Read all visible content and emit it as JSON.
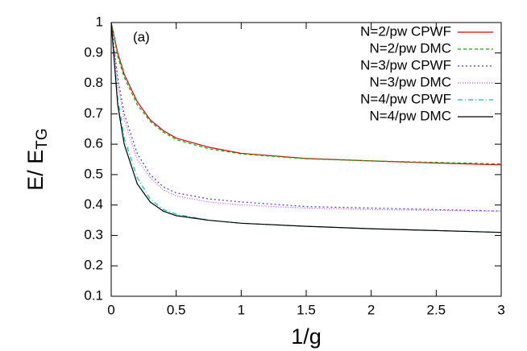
{
  "chart_data": {
    "type": "line",
    "xlabel": "1/g",
    "ylabel": "E/ E",
    "ylabel_sub": "TG",
    "annotation": "(a)",
    "x": [
      0,
      0.05,
      0.1,
      0.2,
      0.3,
      0.4,
      0.5,
      0.75,
      1,
      1.5,
      2,
      2.5,
      3
    ],
    "series": [
      {
        "name": "N=2/pw CPWF",
        "color": "#e00000",
        "dash": "",
        "values": [
          1,
          0.9,
          0.83,
          0.74,
          0.68,
          0.645,
          0.62,
          0.59,
          0.57,
          0.553,
          0.545,
          0.538,
          0.532
        ]
      },
      {
        "name": "N=2/pw DMC",
        "color": "#00b000",
        "dash": "4 3",
        "values": [
          1,
          0.89,
          0.82,
          0.73,
          0.675,
          0.64,
          0.615,
          0.585,
          0.568,
          0.552,
          0.545,
          0.54,
          0.535
        ]
      },
      {
        "name": "N=3/pw CPWF",
        "color": "#4040d0",
        "dash": "2 3",
        "values": [
          1,
          0.82,
          0.7,
          0.57,
          0.5,
          0.46,
          0.44,
          0.42,
          0.41,
          0.395,
          0.39,
          0.385,
          0.38
        ]
      },
      {
        "name": "N=3/pw DMC",
        "color": "#e040e0",
        "dash": "1 2",
        "values": [
          1,
          0.8,
          0.68,
          0.55,
          0.49,
          0.45,
          0.43,
          0.41,
          0.4,
          0.39,
          0.385,
          0.382,
          0.38
        ]
      },
      {
        "name": "N=4/pw CPWF",
        "color": "#00c0c0",
        "dash": "6 3 1 3",
        "values": [
          1,
          0.75,
          0.62,
          0.49,
          0.42,
          0.385,
          0.37,
          0.35,
          0.34,
          0.33,
          0.322,
          0.316,
          0.31
        ]
      },
      {
        "name": "N=4/pw DMC",
        "color": "#000000",
        "dash": "",
        "values": [
          1,
          0.73,
          0.6,
          0.47,
          0.41,
          0.38,
          0.365,
          0.35,
          0.34,
          0.33,
          0.322,
          0.316,
          0.31
        ]
      }
    ],
    "xlim": [
      0,
      3
    ],
    "ylim": [
      0.1,
      1
    ],
    "xticks": [
      0,
      0.5,
      1,
      1.5,
      2,
      2.5,
      3
    ],
    "yticks": [
      0.1,
      0.2,
      0.3,
      0.4,
      0.5,
      0.6,
      0.7,
      0.8,
      0.9,
      1
    ],
    "legend": "top-right"
  }
}
